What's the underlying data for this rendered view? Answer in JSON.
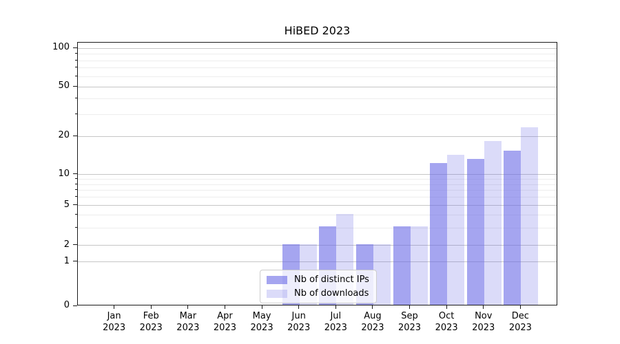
{
  "chart_data": {
    "type": "bar",
    "title": "HiBED 2023",
    "x_axis": {
      "months": [
        "Jan",
        "Feb",
        "Mar",
        "Apr",
        "May",
        "Jun",
        "Jul",
        "Aug",
        "Sep",
        "Oct",
        "Nov",
        "Dec"
      ],
      "year": "2023"
    },
    "series": [
      {
        "name": "Nb of distinct IPs",
        "color": "rgba(105,105,230,0.60)",
        "values": [
          0,
          0,
          0,
          0,
          0,
          2,
          3,
          2,
          3,
          12,
          13,
          15
        ]
      },
      {
        "name": "Nb of downloads",
        "color": "rgba(105,105,230,0.24)",
        "values": [
          0,
          0,
          0,
          0,
          0,
          2,
          4,
          2,
          3,
          14,
          18,
          23
        ]
      }
    ],
    "y_axis": {
      "tick_labels": [
        "0",
        "1",
        "2",
        "5",
        "10",
        "20",
        "50",
        "100"
      ],
      "tick_values": [
        0,
        1,
        2,
        5,
        10,
        20,
        50,
        100
      ],
      "minor_tick_values": [
        3,
        4,
        6,
        7,
        8,
        9,
        30,
        40,
        60,
        70,
        80,
        90
      ],
      "scale": "log-like",
      "anchor_fractions": [
        [
          0,
          0
        ],
        [
          1,
          0.168
        ],
        [
          2,
          0.23
        ],
        [
          5,
          0.382
        ],
        [
          10,
          0.5
        ],
        [
          20,
          0.644
        ],
        [
          50,
          0.8325
        ],
        [
          100,
          0.9791
        ]
      ]
    },
    "legend": {
      "position": "lower center",
      "entries": [
        "Nb of distinct IPs",
        "Nb of downloads"
      ]
    },
    "grid": true
  }
}
